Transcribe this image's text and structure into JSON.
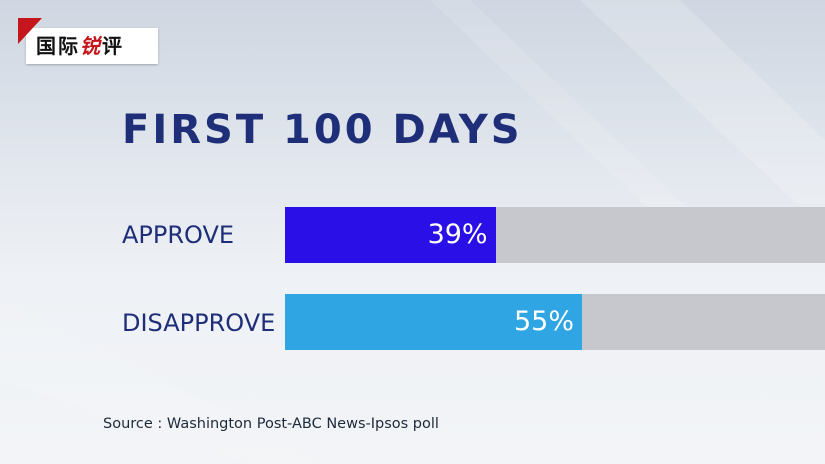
{
  "logo": {
    "text_plain": "国际",
    "text_accent": "锐",
    "text_tail": "评"
  },
  "colors": {
    "title": "#1e2e78",
    "track": "#c6c8cd",
    "approve": "#2a0fe6",
    "disapprove": "#2fa6e3",
    "logo_red": "#c4161c"
  },
  "chart_data": {
    "type": "bar",
    "orientation": "horizontal",
    "title": "FIRST 100 DAYS",
    "categories": [
      "APPROVE",
      "DISAPPROVE"
    ],
    "values": [
      39,
      55
    ],
    "value_labels": [
      "39%",
      "55%"
    ],
    "unit": "%",
    "xlim": [
      0,
      100
    ],
    "bar_colors": [
      "#2a0fe6",
      "#2fa6e3"
    ],
    "grid": false,
    "legend": "none"
  },
  "source": "Source : Washington Post-ABC News-Ipsos poll"
}
